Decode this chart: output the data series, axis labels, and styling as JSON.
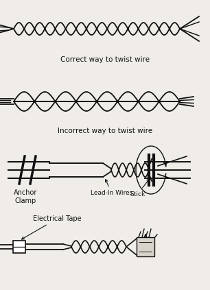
{
  "bg_color": "#f0ede8",
  "text_color": "#111111",
  "line_color": "#111111",
  "correct_label": "Correct way to twist wire",
  "incorrect_label": "Incorrect way to twist wire",
  "anchor_label": "Anchor\nClamp",
  "leadin_label": "Lead-In Wires",
  "stick_label": "Stick",
  "tape_label": "Electrical Tape",
  "label_fontsize": 7.0,
  "fig_width": 3.06,
  "fig_height": 4.23,
  "dpi": 100
}
